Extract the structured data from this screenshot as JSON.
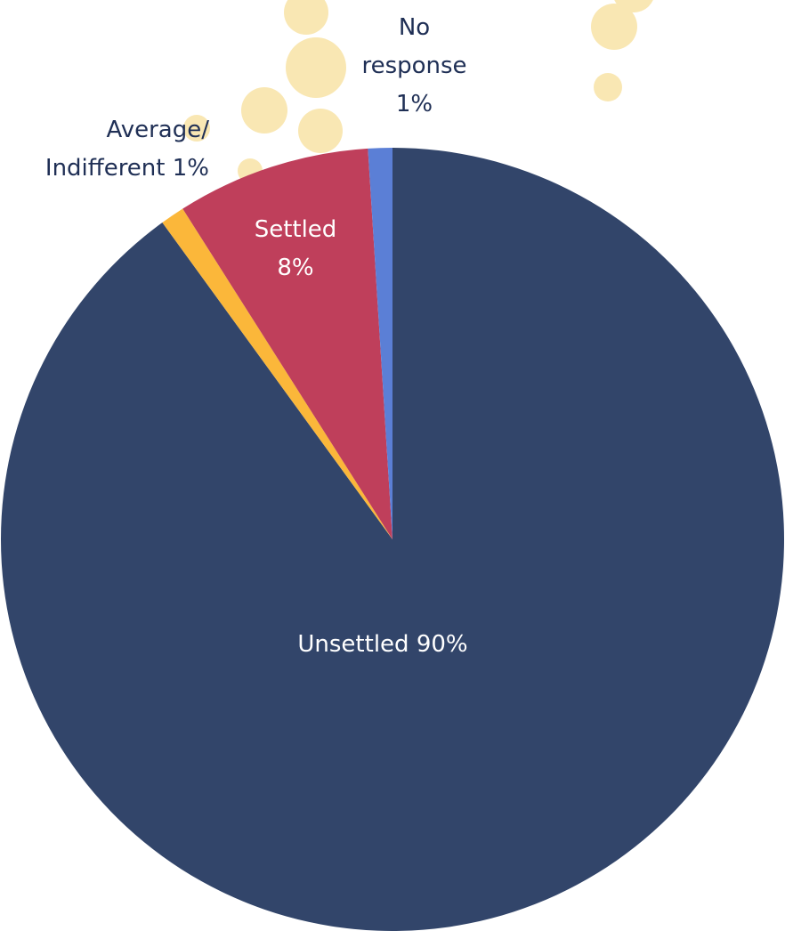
{
  "chart_data": {
    "type": "pie",
    "categories": [
      "Unsettled",
      "Average/ Indifferent",
      "Settled",
      "No response"
    ],
    "values": [
      90,
      1,
      8,
      1
    ],
    "value_labels": [
      "90%",
      "1%",
      "8%",
      "1%"
    ],
    "colors": [
      "#32456a",
      "#fbb73a",
      "#bf3f5b",
      "#5b7fd6"
    ]
  }
}
